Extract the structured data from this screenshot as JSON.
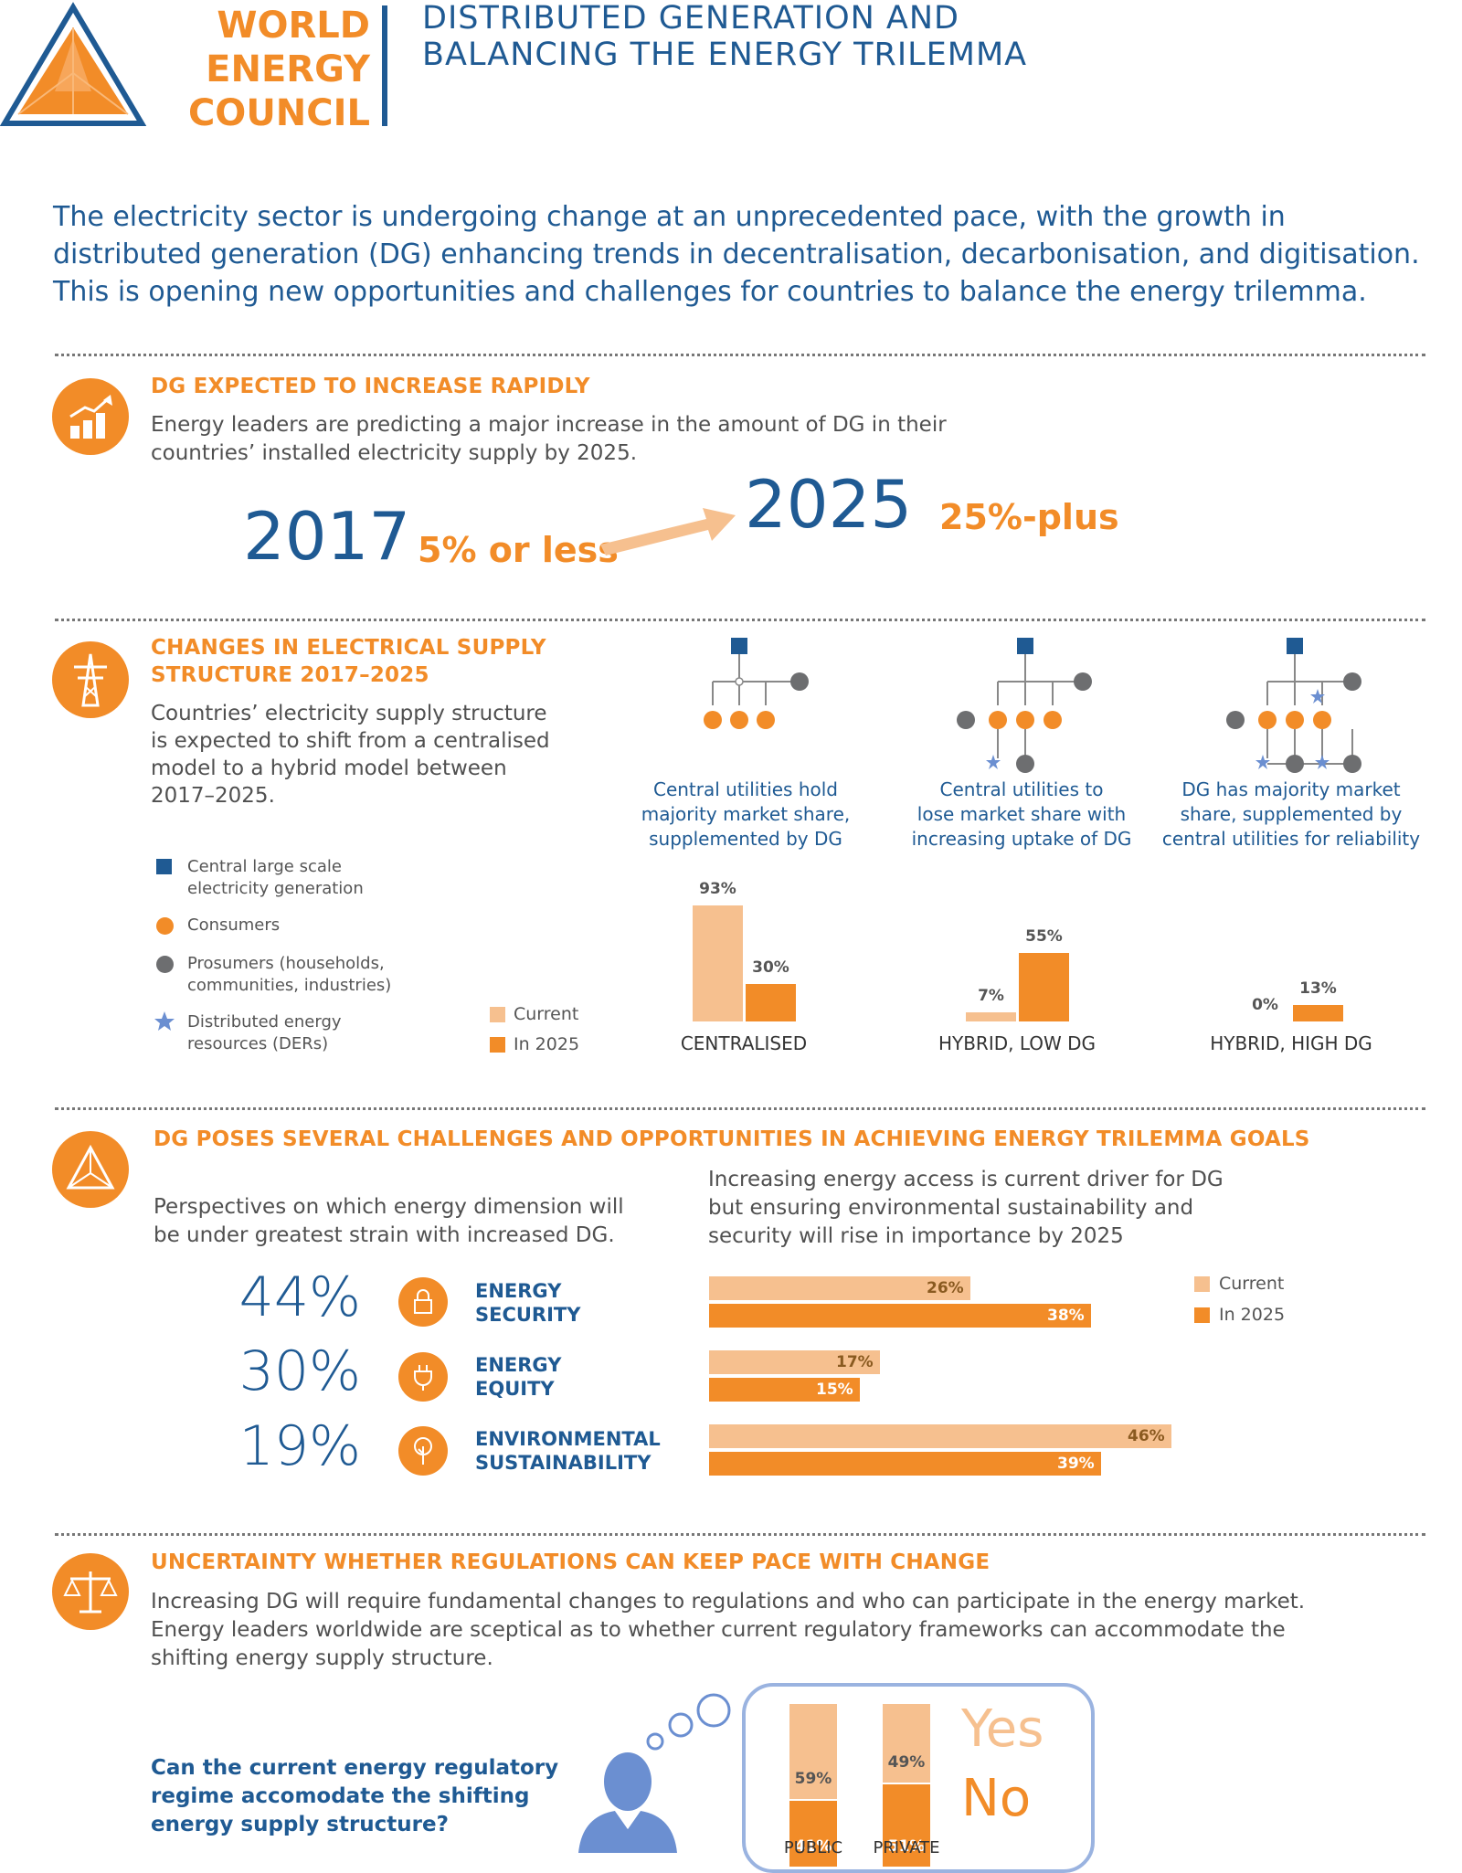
{
  "header": {
    "org_line1": "WORLD",
    "org_line2": "ENERGY",
    "org_line3": "COUNCIL",
    "title_line1": "DISTRIBUTED GENERATION AND",
    "title_line2": "BALANCING THE ENERGY TRILEMMA"
  },
  "intro": {
    "line1": "The electricity sector is undergoing change at an unprecedented pace, with the growth in",
    "line2": "distributed generation (DG) enhancing trends in decentralisation, decarbonisation, and digitisation.",
    "line3": "This is opening new opportunities and challenges for countries to balance the energy trilemma."
  },
  "section1": {
    "title": "DG EXPECTED TO INCREASE RAPIDLY",
    "body_line1": "Energy leaders are predicting a major increase in the amount of DG in their",
    "body_line2": "countries’ installed electricity supply by 2025.",
    "year_from": "2017",
    "value_from": "5% or less",
    "year_to": "2025",
    "value_to": "25%-plus"
  },
  "section2": {
    "title_line1": "CHANGES IN ELECTRICAL SUPPLY",
    "title_line2": "STRUCTURE 2017–2025",
    "body_line1": "Countries’ electricity supply structure",
    "body_line2": "is expected to shift from a centralised",
    "body_line3": "model to a hybrid model between",
    "body_line4": "2017–2025.",
    "legend": [
      {
        "line1": "Central large scale",
        "line2": "electricity generation",
        "shape": "square",
        "color": "#1f5a93"
      },
      {
        "line1": "Consumers",
        "line2": "",
        "shape": "circle",
        "color": "#f28c28"
      },
      {
        "line1": "Prosumers (households,",
        "line2": "communities, industries)",
        "shape": "circle",
        "color": "#6d6e70"
      },
      {
        "line1": "Distributed energy",
        "line2": "resources (DERs)",
        "shape": "star",
        "color": "#6b8fd1"
      }
    ],
    "bar_legend": {
      "current": "Current",
      "in2025": "In 2025"
    },
    "captions": [
      {
        "l1": "Central utilities hold",
        "l2": "majority market share,",
        "l3": "supplemented by DG"
      },
      {
        "l1": "Central utilities to",
        "l2": "lose market share with",
        "l3": "increasing uptake of DG"
      },
      {
        "l1": "DG has majority market",
        "l2": "share, supplemented by",
        "l3": "central utilities for reliability"
      }
    ]
  },
  "section3": {
    "title": "DG POSES SEVERAL CHALLENGES AND OPPORTUNITIES IN ACHIEVING ENERGY TRILEMMA GOALS",
    "left_line1": "Perspectives on which energy dimension will",
    "left_line2": "be under greatest strain with increased DG.",
    "right_line1": "Increasing energy access is current driver for DG",
    "right_line2": "but ensuring environmental sustainability and",
    "right_line3": "security will rise in importance by 2025",
    "dimensions": [
      {
        "pct": "44%",
        "l1": "ENERGY",
        "l2": "SECURITY",
        "icon": "lock-icon"
      },
      {
        "pct": "30%",
        "l1": "ENERGY",
        "l2": "EQUITY",
        "icon": "plug-icon"
      },
      {
        "pct": "19%",
        "l1": "ENVIRONMENTAL",
        "l2": "SUSTAINABILITY",
        "icon": "tree-icon"
      }
    ],
    "legend": {
      "current": "Current",
      "in2025": "In 2025"
    }
  },
  "section4": {
    "title": "UNCERTAINTY WHETHER REGULATIONS CAN KEEP PACE WITH CHANGE",
    "body_line1": "Increasing DG will require fundamental changes to regulations and who can participate in the energy market.",
    "body_line2": "Energy leaders worldwide are sceptical as to whether current regulatory frameworks can accommodate the",
    "body_line3": "shifting energy supply structure.",
    "question_line1": "Can the current energy regulatory",
    "question_line2": "regime accomodate the shifting",
    "question_line3": "energy supply structure?",
    "yes": "Yes",
    "no": "No"
  },
  "colors": {
    "orange": "#f28c28",
    "light_orange": "#f6c08f",
    "blue": "#1f5a93",
    "grey": "#6d6e70",
    "star": "#6b8fd1"
  },
  "chart_data": [
    {
      "type": "bar",
      "categories": [
        "CENTRALISED",
        "HYBRID, LOW DG",
        "HYBRID, HIGH DG"
      ],
      "series": [
        {
          "name": "Current",
          "values": [
            93,
            7,
            0
          ],
          "labels": [
            "93%",
            "7%",
            "0%"
          ]
        },
        {
          "name": "In 2025",
          "values": [
            30,
            55,
            13
          ],
          "labels": [
            "30%",
            "55%",
            "13%"
          ]
        }
      ]
    },
    {
      "type": "bar",
      "orientation": "horizontal",
      "categories": [
        "ENERGY SECURITY",
        "ENERGY EQUITY",
        "ENVIRONMENTAL SUSTAINABILITY"
      ],
      "series": [
        {
          "name": "Current",
          "values": [
            26,
            17,
            46
          ],
          "labels": [
            "26%",
            "17%",
            "46%"
          ]
        },
        {
          "name": "In 2025",
          "values": [
            38,
            15,
            39
          ],
          "labels": [
            "38%",
            "15%",
            "39%"
          ]
        }
      ]
    },
    {
      "type": "bar",
      "stacked": true,
      "categories": [
        "PUBLIC",
        "PRIVATE"
      ],
      "series": [
        {
          "name": "Yes",
          "values": [
            59,
            49
          ],
          "labels": [
            "59%",
            "49%"
          ]
        },
        {
          "name": "No",
          "values": [
            41,
            51
          ],
          "labels": [
            "41%",
            "51%"
          ]
        }
      ]
    }
  ]
}
